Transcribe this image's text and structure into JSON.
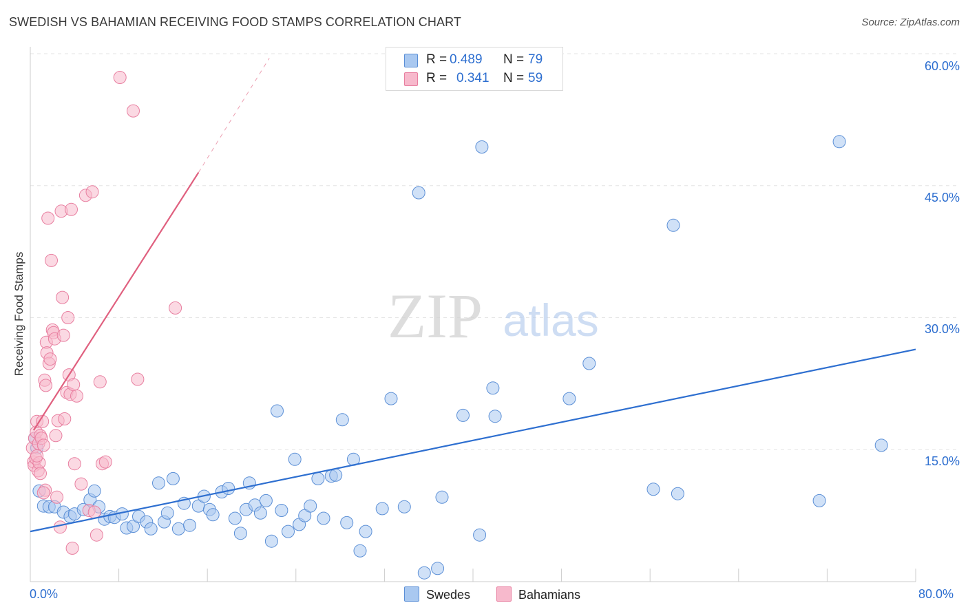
{
  "header": {
    "title": "SWEDISH VS BAHAMIAN RECEIVING FOOD STAMPS CORRELATION CHART",
    "source": "Source: ZipAtlas.com"
  },
  "watermark": {
    "zip": "ZIP",
    "atlas": "atlas"
  },
  "legend": {
    "rows": [
      {
        "r_label": "R =",
        "r_value": "0.489",
        "n_label": "N =",
        "n_value": "79",
        "color": "#a9c8f0"
      },
      {
        "r_label": "R =",
        "r_value": "0.341",
        "n_label": "N =",
        "n_value": "59",
        "color": "#f7b9cc"
      }
    ],
    "bottom": [
      {
        "label": "Swedes",
        "color": "#a9c8f0"
      },
      {
        "label": "Bahamians",
        "color": "#f7b9cc"
      }
    ]
  },
  "axes": {
    "ylabel": "Receiving Food Stamps",
    "x_min_label": "0.0%",
    "x_max_label": "80.0%",
    "y_tick_labels": [
      "15.0%",
      "30.0%",
      "45.0%",
      "60.0%"
    ]
  },
  "colors": {
    "swedes_fill": "#a9c8f0",
    "swedes_stroke": "#5b8fd6",
    "swedes_line": "#2e6fd0",
    "bahamians_fill": "#f7b9cc",
    "bahamians_stroke": "#e87fa0",
    "bahamians_line": "#e0607f",
    "grid": "#e3e3e3",
    "axis": "#cccccc"
  },
  "chart_data": {
    "type": "scatter",
    "title": "SWEDISH VS BAHAMIAN RECEIVING FOOD STAMPS CORRELATION CHART",
    "xlabel": "",
    "ylabel": "Receiving Food Stamps",
    "xlim": [
      0,
      80
    ],
    "ylim": [
      0,
      60
    ],
    "x_unit": "%",
    "y_unit": "%",
    "x_ticks": [
      0,
      8,
      16,
      24,
      32,
      40,
      48,
      56,
      64,
      72,
      80
    ],
    "y_ticks": [
      15,
      30,
      45,
      60
    ],
    "grid": "horizontal dashed",
    "legend_position": "top-center",
    "series": [
      {
        "name": "Swedes",
        "r": 0.489,
        "n": 79,
        "trend": {
          "x": [
            0,
            80
          ],
          "y": [
            5.7,
            26.4
          ]
        },
        "points": [
          [
            0.4,
            16.3
          ],
          [
            0.6,
            15.2
          ],
          [
            0.8,
            10.3
          ],
          [
            1.2,
            8.6
          ],
          [
            1.7,
            8.5
          ],
          [
            2.2,
            8.5
          ],
          [
            3.0,
            7.9
          ],
          [
            3.6,
            7.4
          ],
          [
            4.0,
            7.7
          ],
          [
            4.8,
            8.2
          ],
          [
            5.4,
            9.3
          ],
          [
            5.8,
            10.3
          ],
          [
            6.2,
            8.5
          ],
          [
            6.7,
            7.1
          ],
          [
            7.2,
            7.4
          ],
          [
            7.6,
            7.3
          ],
          [
            8.3,
            7.7
          ],
          [
            8.7,
            6.1
          ],
          [
            9.3,
            6.3
          ],
          [
            9.8,
            7.4
          ],
          [
            10.5,
            6.8
          ],
          [
            10.9,
            6.0
          ],
          [
            11.6,
            11.2
          ],
          [
            12.1,
            6.8
          ],
          [
            12.4,
            7.8
          ],
          [
            12.9,
            11.7
          ],
          [
            13.4,
            6.0
          ],
          [
            13.9,
            8.9
          ],
          [
            14.4,
            6.4
          ],
          [
            15.2,
            8.6
          ],
          [
            15.7,
            9.7
          ],
          [
            16.2,
            8.2
          ],
          [
            16.5,
            7.6
          ],
          [
            17.3,
            10.2
          ],
          [
            17.9,
            10.6
          ],
          [
            18.5,
            7.2
          ],
          [
            19.0,
            5.5
          ],
          [
            19.5,
            8.2
          ],
          [
            19.8,
            11.2
          ],
          [
            20.3,
            8.7
          ],
          [
            20.8,
            7.8
          ],
          [
            21.3,
            9.2
          ],
          [
            21.8,
            4.6
          ],
          [
            22.3,
            19.4
          ],
          [
            22.7,
            8.1
          ],
          [
            23.3,
            5.7
          ],
          [
            23.9,
            13.9
          ],
          [
            24.3,
            6.5
          ],
          [
            24.8,
            7.5
          ],
          [
            25.3,
            8.6
          ],
          [
            26.0,
            11.7
          ],
          [
            26.5,
            7.2
          ],
          [
            27.2,
            12.0
          ],
          [
            27.6,
            12.1
          ],
          [
            28.2,
            18.4
          ],
          [
            28.6,
            6.7
          ],
          [
            29.2,
            13.9
          ],
          [
            29.8,
            3.5
          ],
          [
            30.3,
            5.7
          ],
          [
            31.8,
            8.3
          ],
          [
            32.6,
            20.8
          ],
          [
            33.8,
            8.5
          ],
          [
            35.6,
            1.0
          ],
          [
            36.8,
            1.5
          ],
          [
            37.2,
            9.6
          ],
          [
            39.1,
            18.9
          ],
          [
            40.6,
            5.3
          ],
          [
            40.8,
            49.4
          ],
          [
            41.8,
            22.0
          ],
          [
            42.0,
            18.8
          ],
          [
            35.1,
            44.2
          ],
          [
            48.7,
            20.8
          ],
          [
            50.5,
            24.8
          ],
          [
            56.3,
            10.5
          ],
          [
            58.1,
            40.5
          ],
          [
            58.5,
            10.0
          ],
          [
            71.3,
            9.2
          ],
          [
            73.1,
            50.0
          ],
          [
            76.9,
            15.5
          ]
        ]
      },
      {
        "name": "Bahamians",
        "r": 0.341,
        "n": 59,
        "trend": {
          "x": [
            0.3,
            15.2
          ],
          "y": [
            17.2,
            46.5
          ]
        },
        "trend_dashed": {
          "x": [
            15.2,
            21.6
          ],
          "y": [
            46.5,
            59.5
          ]
        },
        "points": [
          [
            0.2,
            15.2
          ],
          [
            0.3,
            13.6
          ],
          [
            0.35,
            13.2
          ],
          [
            0.4,
            16.3
          ],
          [
            0.5,
            14.0
          ],
          [
            0.55,
            17.0
          ],
          [
            0.6,
            18.2
          ],
          [
            0.7,
            12.6
          ],
          [
            0.75,
            15.7
          ],
          [
            0.8,
            13.5
          ],
          [
            0.9,
            16.6
          ],
          [
            1.0,
            16.3
          ],
          [
            1.1,
            18.2
          ],
          [
            1.2,
            15.5
          ],
          [
            1.3,
            22.9
          ],
          [
            1.35,
            10.4
          ],
          [
            1.4,
            22.3
          ],
          [
            1.45,
            27.2
          ],
          [
            1.5,
            26.0
          ],
          [
            1.6,
            41.3
          ],
          [
            1.7,
            24.8
          ],
          [
            1.8,
            25.3
          ],
          [
            1.9,
            36.5
          ],
          [
            2.0,
            28.6
          ],
          [
            2.1,
            28.3
          ],
          [
            2.2,
            27.6
          ],
          [
            2.3,
            16.6
          ],
          [
            2.4,
            9.6
          ],
          [
            2.5,
            18.3
          ],
          [
            2.7,
            6.2
          ],
          [
            2.8,
            42.1
          ],
          [
            2.9,
            32.3
          ],
          [
            3.0,
            28.0
          ],
          [
            3.1,
            18.5
          ],
          [
            3.3,
            21.5
          ],
          [
            3.4,
            30.0
          ],
          [
            3.5,
            23.5
          ],
          [
            3.6,
            21.3
          ],
          [
            3.7,
            42.3
          ],
          [
            3.8,
            3.8
          ],
          [
            3.9,
            22.4
          ],
          [
            4.0,
            13.4
          ],
          [
            4.2,
            21.1
          ],
          [
            4.6,
            11.1
          ],
          [
            5.0,
            43.9
          ],
          [
            5.3,
            8.1
          ],
          [
            5.6,
            44.3
          ],
          [
            5.8,
            7.9
          ],
          [
            6.0,
            5.3
          ],
          [
            6.3,
            22.7
          ],
          [
            6.5,
            13.4
          ],
          [
            6.8,
            13.6
          ],
          [
            8.1,
            57.3
          ],
          [
            9.3,
            53.5
          ],
          [
            9.7,
            23.0
          ],
          [
            13.1,
            31.1
          ],
          [
            0.9,
            12.3
          ],
          [
            1.2,
            10.1
          ],
          [
            0.6,
            14.3
          ]
        ]
      }
    ]
  }
}
